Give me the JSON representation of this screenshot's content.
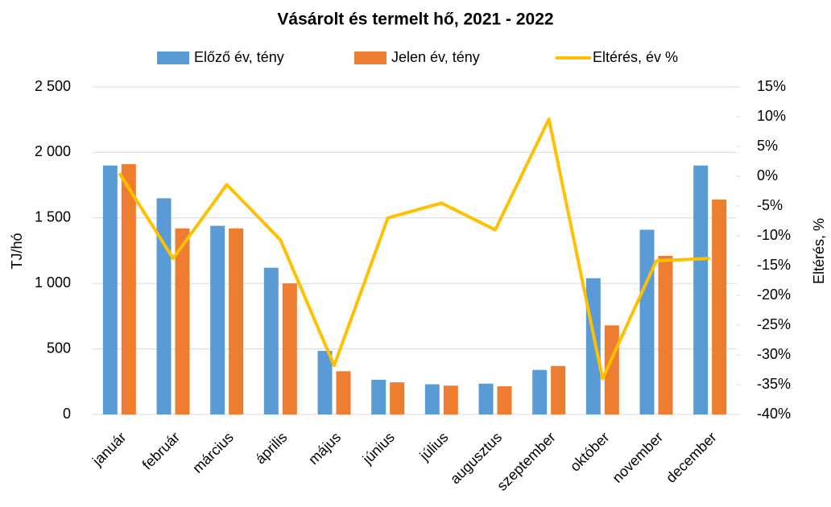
{
  "chart_data": {
    "type": "bar",
    "title": "Vásárolt és termelt hő, 2021 - 2022",
    "categories": [
      "január",
      "február",
      "március",
      "április",
      "május",
      "június",
      "július",
      "augusztus",
      "szeptember",
      "október",
      "november",
      "december"
    ],
    "series": [
      {
        "name": "Előző év, tény",
        "color": "#5b9bd5",
        "values": [
          1900,
          1650,
          1440,
          1120,
          485,
          265,
          230,
          235,
          340,
          1040,
          1410,
          1900
        ]
      },
      {
        "name": "Jelen év, tény",
        "color": "#ed7d31",
        "values": [
          1910,
          1420,
          1420,
          1000,
          330,
          245,
          220,
          215,
          370,
          680,
          1210,
          1640
        ]
      },
      {
        "name": "Eltérés, év %",
        "color": "#ffc000",
        "type": "line",
        "axis": "y2",
        "values": [
          0.5,
          -13.8,
          -1.4,
          -10.7,
          -31.8,
          -7,
          -4.5,
          -9,
          9.6,
          -34,
          -14.2,
          -13.8
        ]
      }
    ],
    "ylabel": "TJ/hó",
    "y2label": "Eltérés, %",
    "ylim": [
      0,
      2500
    ],
    "yticks": [
      0,
      500,
      {
        "value": 1000,
        "label": "1 000"
      },
      {
        "value": 1500,
        "label": "1 500"
      },
      {
        "value": 2000,
        "label": "2 000"
      },
      {
        "value": 2500,
        "label": "2 500"
      }
    ],
    "y2lim": [
      -40,
      15
    ],
    "y2ticks": [
      {
        "value": -40,
        "label": "-40%"
      },
      {
        "value": -35,
        "label": "-35%"
      },
      {
        "value": -30,
        "label": "-30%"
      },
      {
        "value": -25,
        "label": "-25%"
      },
      {
        "value": -20,
        "label": "-20%"
      },
      {
        "value": -15,
        "label": "-15%"
      },
      {
        "value": -10,
        "label": "-10%"
      },
      {
        "value": -5,
        "label": "-5%"
      },
      {
        "value": 0,
        "label": "0%"
      },
      {
        "value": 5,
        "label": "5%"
      },
      {
        "value": 10,
        "label": "10%"
      },
      {
        "value": 15,
        "label": "15%"
      }
    ],
    "grid": true,
    "legend": "top"
  }
}
